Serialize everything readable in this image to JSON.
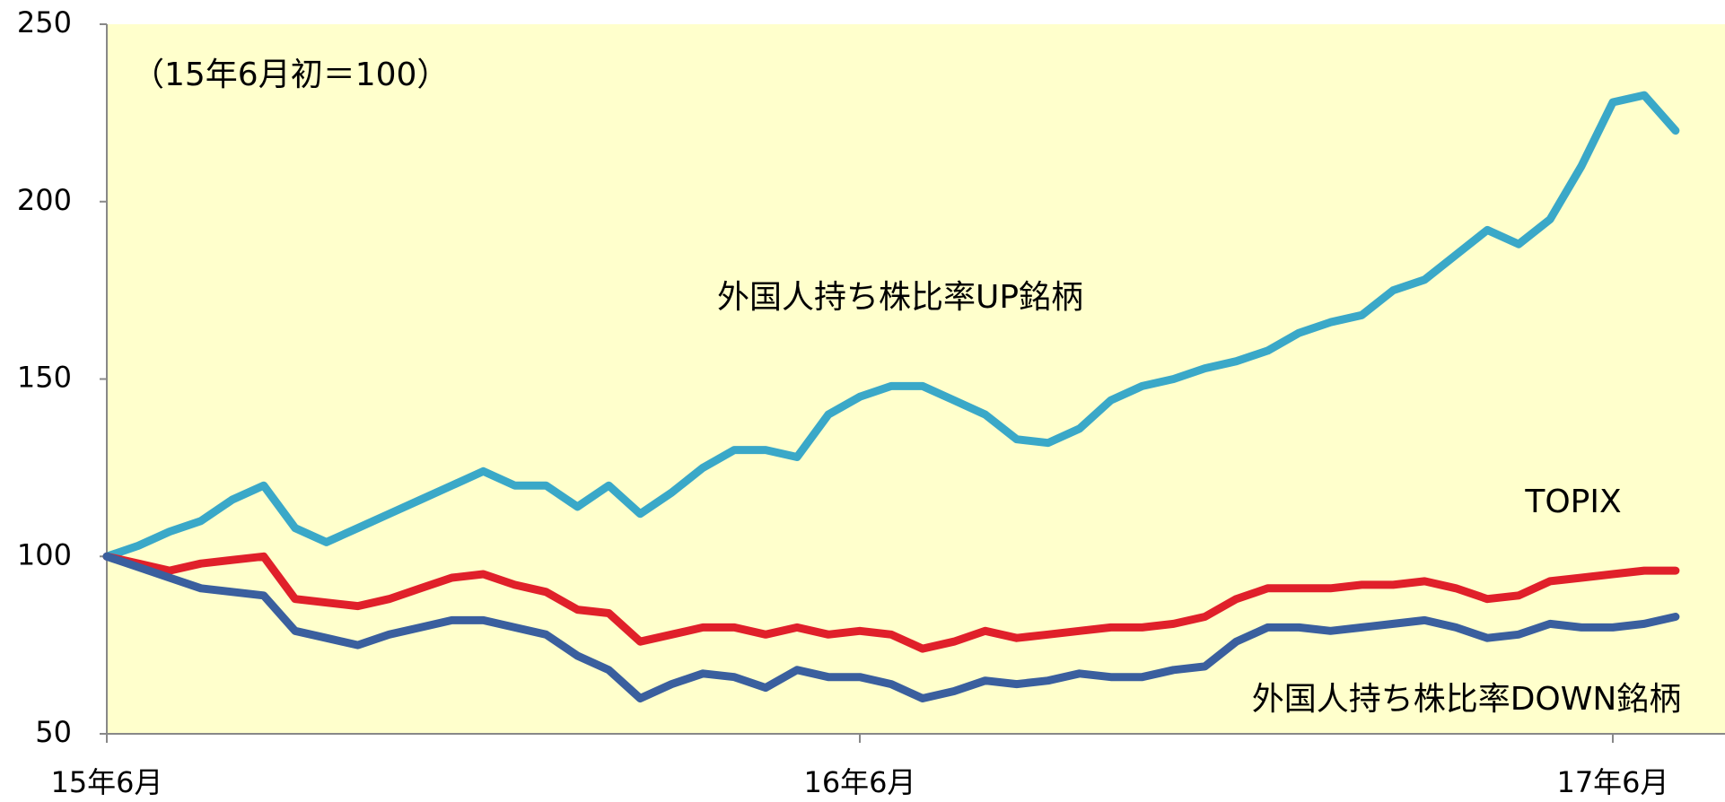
{
  "chart_data": {
    "type": "line",
    "subtitle": "（15年6月初＝100）",
    "categories": [
      "15年6月",
      null,
      null,
      null,
      null,
      null,
      null,
      null,
      null,
      null,
      null,
      null,
      null,
      null,
      null,
      null,
      null,
      null,
      null,
      null,
      null,
      null,
      null,
      null,
      "16年6月",
      null,
      null,
      null,
      null,
      null,
      null,
      null,
      null,
      null,
      null,
      null,
      null,
      null,
      null,
      null,
      null,
      null,
      null,
      null,
      null,
      null,
      null,
      null,
      "17年6月",
      null,
      null
    ],
    "series": [
      {
        "name": "外国人持ち株比率UP銘柄",
        "color": "#3aa8c8",
        "values": [
          100,
          103,
          107,
          110,
          116,
          120,
          108,
          104,
          108,
          112,
          116,
          120,
          124,
          120,
          120,
          114,
          120,
          112,
          118,
          125,
          130,
          130,
          128,
          140,
          145,
          148,
          148,
          144,
          140,
          133,
          132,
          136,
          144,
          148,
          150,
          153,
          155,
          158,
          163,
          166,
          168,
          175,
          178,
          185,
          192,
          188,
          195,
          210,
          228,
          230,
          220
        ]
      },
      {
        "name": "TOPIX",
        "color": "#e0202a",
        "values": [
          100,
          98,
          96,
          98,
          99,
          100,
          88,
          87,
          86,
          88,
          91,
          94,
          95,
          92,
          90,
          85,
          84,
          76,
          78,
          80,
          80,
          78,
          80,
          78,
          79,
          78,
          74,
          76,
          79,
          77,
          78,
          79,
          80,
          80,
          81,
          83,
          88,
          91,
          91,
          91,
          92,
          92,
          93,
          91,
          88,
          89,
          93,
          94,
          95,
          96,
          96
        ]
      },
      {
        "name": "外国人持ち株比率DOWN銘柄",
        "color": "#3a5f9e",
        "values": [
          100,
          97,
          94,
          91,
          90,
          89,
          79,
          77,
          75,
          78,
          80,
          82,
          82,
          80,
          78,
          72,
          68,
          60,
          64,
          67,
          66,
          63,
          68,
          66,
          66,
          64,
          60,
          62,
          65,
          64,
          65,
          67,
          66,
          66,
          68,
          69,
          76,
          80,
          80,
          79,
          80,
          81,
          82,
          80,
          77,
          78,
          81,
          80,
          80,
          81,
          83
        ]
      }
    ],
    "ylim": [
      50,
      250
    ],
    "yticks": [
      50,
      100,
      150,
      200,
      250
    ],
    "background": "#ffffcc"
  }
}
